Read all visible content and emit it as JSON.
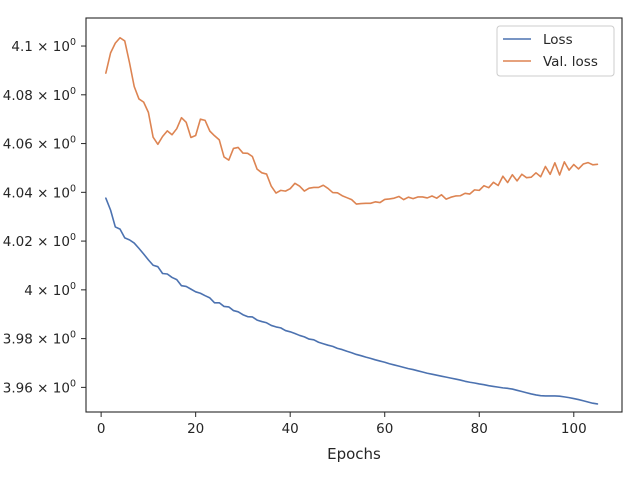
{
  "chart_data": {
    "type": "line",
    "xlabel": "Epochs",
    "ylabel": "",
    "xlim": [
      -3.2,
      110.2
    ],
    "ylim": [
      3.9499,
      4.1115
    ],
    "x_ticks": [
      0,
      20,
      40,
      60,
      80,
      100
    ],
    "x_tick_labels": [
      "0",
      "20",
      "40",
      "60",
      "80",
      "100"
    ],
    "y_ticks": [
      3.96,
      3.98,
      4.0,
      4.02,
      4.04,
      4.06,
      4.08,
      4.1
    ],
    "y_tick_labels": [
      {
        "mantissa": "3.96",
        "base": "10",
        "exp": "0"
      },
      {
        "mantissa": "3.98",
        "base": "10",
        "exp": "0"
      },
      {
        "mantissa": "4",
        "base": "10",
        "exp": "0"
      },
      {
        "mantissa": "4.02",
        "base": "10",
        "exp": "0"
      },
      {
        "mantissa": "4.04",
        "base": "10",
        "exp": "0"
      },
      {
        "mantissa": "4.06",
        "base": "10",
        "exp": "0"
      },
      {
        "mantissa": "4.08",
        "base": "10",
        "exp": "0"
      },
      {
        "mantissa": "4.1",
        "base": "10",
        "exp": "0"
      }
    ],
    "grid": false,
    "legend_position": "top-right",
    "x": [
      1,
      2,
      3,
      4,
      5,
      6,
      7,
      8,
      9,
      10,
      11,
      12,
      13,
      14,
      15,
      16,
      17,
      18,
      19,
      20,
      21,
      22,
      23,
      24,
      25,
      26,
      27,
      28,
      29,
      30,
      31,
      32,
      33,
      34,
      35,
      36,
      37,
      38,
      39,
      40,
      41,
      42,
      43,
      44,
      45,
      46,
      47,
      48,
      49,
      50,
      51,
      52,
      53,
      54,
      55,
      56,
      57,
      58,
      59,
      60,
      61,
      62,
      63,
      64,
      65,
      66,
      67,
      68,
      69,
      70,
      71,
      72,
      73,
      74,
      75,
      76,
      77,
      78,
      79,
      80,
      81,
      82,
      83,
      84,
      85,
      86,
      87,
      88,
      89,
      90,
      91,
      92,
      93,
      94,
      95,
      96,
      97,
      98,
      99,
      100,
      101,
      102,
      103,
      104,
      105
    ],
    "series": [
      {
        "name": "Loss",
        "color": "#4c72b0",
        "values": [
          4.0376,
          4.0327,
          4.0258,
          4.0249,
          4.0213,
          4.0205,
          4.0192,
          4.017,
          4.0147,
          4.0123,
          4.0101,
          4.0095,
          4.0067,
          4.0065,
          4.0051,
          4.0042,
          4.0017,
          4.0014,
          4.0003,
          3.9992,
          3.9986,
          3.9976,
          3.9967,
          3.9947,
          3.9947,
          3.9932,
          3.993,
          3.9915,
          3.991,
          3.9898,
          3.989,
          3.9889,
          3.9876,
          3.987,
          3.9865,
          3.9854,
          3.9848,
          3.9844,
          3.9833,
          3.9828,
          3.9821,
          3.9813,
          3.9807,
          3.9798,
          3.9795,
          3.9785,
          3.9779,
          3.9773,
          3.9768,
          3.976,
          3.9755,
          3.9748,
          3.9742,
          3.9735,
          3.973,
          3.9724,
          3.9719,
          3.9713,
          3.9708,
          3.9703,
          3.9697,
          3.9692,
          3.9687,
          3.9682,
          3.9677,
          3.9673,
          3.9668,
          3.9663,
          3.9658,
          3.9654,
          3.965,
          3.9646,
          3.9642,
          3.9638,
          3.9634,
          3.963,
          3.9625,
          3.9621,
          3.9618,
          3.9614,
          3.9611,
          3.9607,
          3.9604,
          3.9601,
          3.9598,
          3.9596,
          3.9593,
          3.9588,
          3.9583,
          3.9578,
          3.9573,
          3.9569,
          3.9566,
          3.9565,
          3.9565,
          3.9565,
          3.9564,
          3.9561,
          3.9558,
          3.9554,
          3.955,
          3.9545,
          3.954,
          3.9535,
          3.9532
        ]
      },
      {
        "name": "Val. loss",
        "color": "#dd8452",
        "values": [
          4.0889,
          4.0972,
          4.1012,
          4.1034,
          4.1021,
          4.0932,
          4.0834,
          4.0783,
          4.077,
          4.0728,
          4.0626,
          4.0597,
          4.0629,
          4.0652,
          4.0636,
          4.0661,
          4.0706,
          4.0687,
          4.0625,
          4.0633,
          4.07,
          4.0695,
          4.0651,
          4.0632,
          4.0615,
          4.0545,
          4.0532,
          4.058,
          4.0584,
          4.0561,
          4.056,
          4.0547,
          4.0495,
          4.048,
          4.0475,
          4.0425,
          4.0397,
          4.0408,
          4.0405,
          4.0415,
          4.0437,
          4.0425,
          4.0405,
          4.0417,
          4.042,
          4.042,
          4.0429,
          4.0416,
          4.0399,
          4.0398,
          4.0386,
          4.0378,
          4.037,
          4.0352,
          4.0354,
          4.0355,
          4.0355,
          4.0361,
          4.0358,
          4.0371,
          4.0373,
          4.0376,
          4.0383,
          4.037,
          4.038,
          4.0374,
          4.0381,
          4.0381,
          4.0377,
          4.0385,
          4.0376,
          4.039,
          4.0372,
          4.038,
          4.0385,
          4.0386,
          4.0396,
          4.0393,
          4.041,
          4.0408,
          4.0427,
          4.0419,
          4.0441,
          4.0428,
          4.0466,
          4.044,
          4.0472,
          4.0447,
          4.0474,
          4.046,
          4.0462,
          4.048,
          4.0464,
          4.0506,
          4.0474,
          4.0521,
          4.0471,
          4.0525,
          4.0491,
          4.0514,
          4.0496,
          4.0516,
          4.0522,
          4.0513,
          4.0515
        ]
      }
    ]
  }
}
